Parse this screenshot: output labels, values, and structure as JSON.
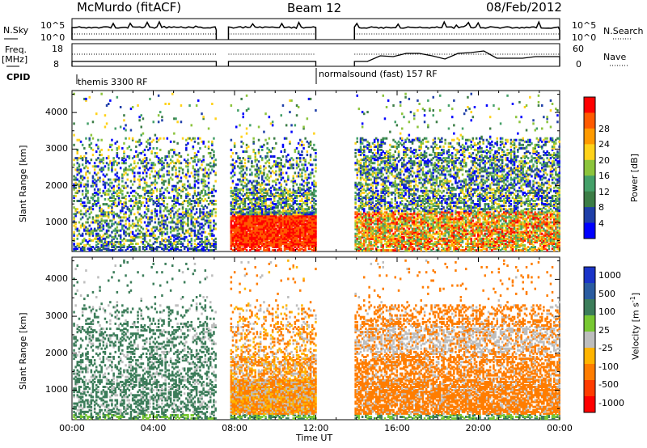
{
  "header": {
    "station": "McMurdo (fitACF)",
    "beam": "Beam 12",
    "date": "08/Feb/2012"
  },
  "panels": {
    "nsky": {
      "label": "N.Sky",
      "scale_top": "10^5",
      "scale_bottom": "10^0",
      "right_label": "N.Search"
    },
    "freq": {
      "label_top": "Freq.",
      "label_unit": "[MHz]",
      "left_top": "18",
      "left_bottom": "8",
      "right_top": "60",
      "right_bottom": "0",
      "right_label": "Nave"
    },
    "cpid": {
      "label": "CPID",
      "programs": [
        "themis 3300 RF",
        "normalsound (fast) 157 RF"
      ]
    }
  },
  "colors": {
    "power_scale": [
      "#0000ff",
      "#1f3fa8",
      "#3c7d46",
      "#44a069",
      "#8cc43c",
      "#ffd21a",
      "#ff9a00",
      "#ff5a00",
      "#ff0000"
    ],
    "velocity_scale": [
      "#1a34c8",
      "#2a5ca0",
      "#3c7d5a",
      "#78c832",
      "#bdbdbd",
      "#ffb400",
      "#ff7d00",
      "#ff3c00",
      "#ff0000"
    ],
    "ground_scatter": "#bdbdbd"
  },
  "chart_data": [
    {
      "type": "heatmap",
      "name": "power",
      "ylabel": "Slant Range [km]",
      "xlabel": "Time UT",
      "x_ticks": [
        "00:00",
        "04:00",
        "08:00",
        "12:00",
        "16:00",
        "20:00",
        "00:00"
      ],
      "y_ticks": [
        "1000",
        "2000",
        "3000",
        "4000"
      ],
      "ylim": [
        200,
        4600
      ],
      "xlim_hours": [
        0,
        24
      ],
      "colorbar_label": "Power [dB]",
      "colorbar_ticks": [
        "4",
        "8",
        "12",
        "16",
        "20",
        "24",
        "28"
      ],
      "data_gaps_hours": [
        [
          7.1,
          7.7
        ],
        [
          12.0,
          13.9
        ]
      ]
    },
    {
      "type": "heatmap",
      "name": "velocity",
      "ylabel": "Slant Range [km]",
      "xlabel": "Time UT",
      "x_ticks": [
        "00:00",
        "04:00",
        "08:00",
        "12:00",
        "16:00",
        "20:00",
        "00:00"
      ],
      "y_ticks": [
        "1000",
        "2000",
        "3000",
        "4000"
      ],
      "ylim": [
        200,
        4600
      ],
      "xlim_hours": [
        0,
        24
      ],
      "colorbar_label": "Velocity [m s^-1]",
      "colorbar_ticks": [
        "1000",
        "500",
        "100",
        "25",
        "-25",
        "-100",
        "-500",
        "-1000"
      ],
      "data_gaps_hours": [
        [
          7.1,
          7.7
        ],
        [
          12.0,
          13.9
        ]
      ]
    }
  ],
  "footer": {
    "xlabel": "Time UT"
  }
}
